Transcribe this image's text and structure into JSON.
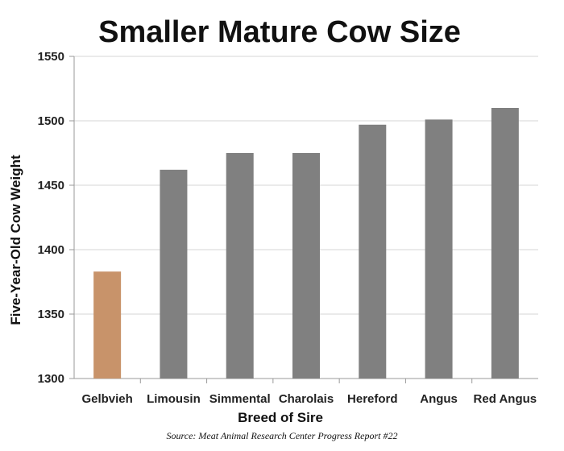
{
  "chart_data": {
    "type": "bar",
    "title": "Smaller Mature Cow Size",
    "xlabel": "Breed of Sire",
    "ylabel": "Five-Year-Old Cow Weight",
    "categories": [
      "Gelbvieh",
      "Limousin",
      "Simmental",
      "Charolais",
      "Hereford",
      "Angus",
      "Red Angus"
    ],
    "values": [
      1383,
      1462,
      1475,
      1475,
      1497,
      1501,
      1510
    ],
    "ylim": [
      1300,
      1550
    ],
    "yticks": [
      "1300",
      "1350",
      "1400",
      "1450",
      "1500",
      "1550"
    ],
    "grid": true,
    "legend": "none",
    "colors": {
      "highlight": "#c8936a",
      "default": "#808080"
    },
    "highlight_category": "Gelbvieh"
  },
  "source": "Source: Meat Animal Research Center Progress Report #22"
}
